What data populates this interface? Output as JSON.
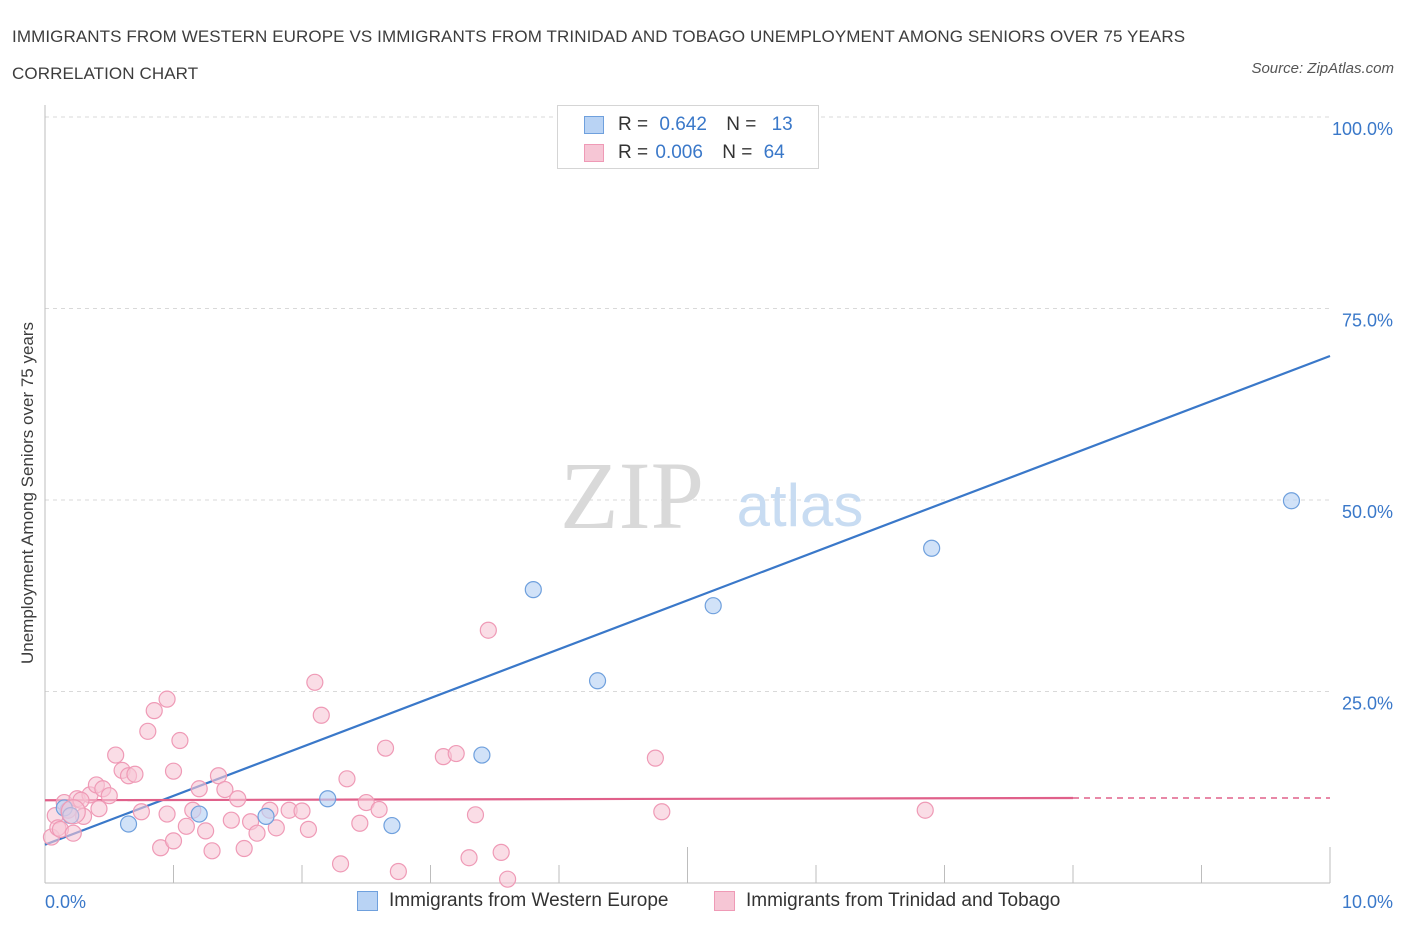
{
  "title": "IMMIGRANTS FROM WESTERN EUROPE VS IMMIGRANTS FROM TRINIDAD AND TOBAGO UNEMPLOYMENT AMONG SENIORS OVER 75 YEARS CORRELATION CHART",
  "source": "Source: ZipAtlas.com",
  "watermark": {
    "zip": "ZIP",
    "atlas": "atlas"
  },
  "colors": {
    "blue": "#3a78c9",
    "blue_fill": "#b9d3f4",
    "blue_stroke": "#6fa0dd",
    "pink": "#e0608a",
    "pink_fill": "#f6c6d5",
    "pink_stroke": "#ef9ab6",
    "grid": "#d9d9d9",
    "axis": "#bdbdbd"
  },
  "legend": {
    "rows": [
      {
        "r_label": "R =",
        "r_value": "0.642",
        "n_label": "N =",
        "n_value": "13"
      },
      {
        "r_label": "R =",
        "r_value": "0.006",
        "n_label": "N =",
        "n_value": "64"
      }
    ]
  },
  "chart_data": {
    "type": "scatter",
    "title": "IMMIGRANTS FROM WESTERN EUROPE VS IMMIGRANTS FROM TRINIDAD AND TOBAGO UNEMPLOYMENT AMONG SENIORS OVER 75 YEARS CORRELATION CHART",
    "xlabel": "",
    "ylabel": "Unemployment Among Seniors over 75 years",
    "xlim": [
      0,
      10
    ],
    "ylim": [
      0,
      100
    ],
    "x_tick_labels": [
      "0.0%",
      "10.0%"
    ],
    "y_ticks": [
      25,
      50,
      75,
      100
    ],
    "y_tick_labels": [
      "25.0%",
      "50.0%",
      "75.0%",
      "100.0%"
    ],
    "grid": true,
    "series": [
      {
        "name": "Immigrants from Western Europe",
        "color": "#3a78c9",
        "r": 0.642,
        "n": 13,
        "points": [
          [
            0.15,
            9.8
          ],
          [
            0.2,
            8.8
          ],
          [
            0.65,
            7.7
          ],
          [
            1.2,
            9.0
          ],
          [
            1.72,
            8.7
          ],
          [
            2.2,
            11.0
          ],
          [
            2.7,
            7.5
          ],
          [
            3.4,
            16.7
          ],
          [
            3.8,
            38.3
          ],
          [
            4.3,
            26.4
          ],
          [
            5.2,
            36.2
          ],
          [
            6.9,
            43.7
          ],
          [
            9.7,
            49.9
          ]
        ],
        "trend": {
          "x": [
            0,
            10
          ],
          "y": [
            5.0,
            68.8
          ],
          "style": "solid"
        }
      },
      {
        "name": "Immigrants from Trinidad and Tobago",
        "color": "#e0608a",
        "r": 0.006,
        "n": 64,
        "points": [
          [
            0.05,
            6.0
          ],
          [
            0.08,
            8.8
          ],
          [
            0.1,
            7.2
          ],
          [
            0.15,
            10.5
          ],
          [
            0.18,
            9.5
          ],
          [
            0.25,
            11.0
          ],
          [
            0.3,
            8.7
          ],
          [
            0.35,
            11.5
          ],
          [
            0.4,
            12.8
          ],
          [
            0.45,
            12.3
          ],
          [
            0.5,
            11.4
          ],
          [
            0.55,
            16.7
          ],
          [
            0.6,
            14.7
          ],
          [
            0.65,
            14.0
          ],
          [
            0.7,
            14.2
          ],
          [
            0.75,
            9.3
          ],
          [
            0.8,
            19.8
          ],
          [
            0.85,
            22.5
          ],
          [
            0.9,
            4.6
          ],
          [
            0.95,
            24.0
          ],
          [
            1.0,
            14.6
          ],
          [
            1.05,
            18.6
          ],
          [
            1.1,
            7.4
          ],
          [
            1.15,
            9.5
          ],
          [
            1.2,
            12.3
          ],
          [
            1.25,
            6.8
          ],
          [
            1.3,
            4.2
          ],
          [
            1.35,
            14.0
          ],
          [
            1.4,
            12.2
          ],
          [
            1.45,
            8.2
          ],
          [
            1.5,
            11.0
          ],
          [
            1.55,
            4.5
          ],
          [
            1.6,
            8.0
          ],
          [
            1.65,
            6.5
          ],
          [
            1.75,
            9.5
          ],
          [
            1.9,
            9.5
          ],
          [
            2.0,
            9.4
          ],
          [
            2.1,
            26.2
          ],
          [
            2.15,
            21.9
          ],
          [
            2.3,
            2.5
          ],
          [
            2.35,
            13.6
          ],
          [
            2.45,
            7.8
          ],
          [
            2.5,
            10.5
          ],
          [
            2.6,
            9.6
          ],
          [
            2.65,
            17.6
          ],
          [
            2.75,
            1.5
          ],
          [
            3.1,
            16.5
          ],
          [
            3.2,
            16.9
          ],
          [
            3.3,
            3.3
          ],
          [
            3.35,
            8.9
          ],
          [
            3.45,
            33.0
          ],
          [
            3.55,
            4.0
          ],
          [
            3.6,
            0.5
          ],
          [
            4.75,
            16.3
          ],
          [
            4.8,
            9.3
          ],
          [
            6.85,
            9.5
          ],
          [
            0.12,
            7.0
          ],
          [
            0.22,
            6.5
          ],
          [
            0.28,
            10.8
          ],
          [
            1.0,
            5.5
          ],
          [
            1.8,
            7.2
          ],
          [
            2.05,
            7.0
          ],
          [
            0.42,
            9.7
          ],
          [
            0.95,
            9.0
          ]
        ],
        "trend": {
          "x": [
            0,
            8
          ],
          "y": [
            10.8,
            11.1
          ],
          "style": "solid",
          "dashed_extension_to": [
            10,
            11.1
          ]
        }
      }
    ]
  }
}
